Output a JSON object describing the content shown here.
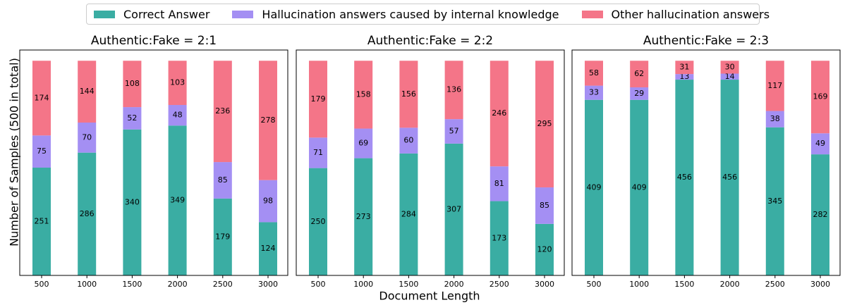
{
  "colors": {
    "correct": "#3aada3",
    "internal": "#a48ff3",
    "other": "#f47588"
  },
  "legend": {
    "correct": "Correct Answer",
    "internal": "Hallucination answers caused by internal knowledge",
    "other": "Other hallucination answers"
  },
  "ylabel": "Number of Samples (500 in total)",
  "xlabel": "Document Length",
  "chart_data": [
    {
      "type": "bar",
      "stacked": true,
      "title": "Authentic:Fake = 2:1",
      "categories": [
        "500",
        "1000",
        "1500",
        "2000",
        "2500",
        "3000"
      ],
      "series": [
        {
          "name": "Correct Answer",
          "values": [
            251,
            286,
            340,
            349,
            179,
            124
          ]
        },
        {
          "name": "Hallucination answers caused by internal knowledge",
          "values": [
            75,
            70,
            52,
            48,
            85,
            98
          ]
        },
        {
          "name": "Other hallucination answers",
          "values": [
            174,
            144,
            108,
            103,
            236,
            278
          ]
        }
      ],
      "ylim": [
        0,
        525
      ]
    },
    {
      "type": "bar",
      "stacked": true,
      "title": "Authentic:Fake = 2:2",
      "categories": [
        "500",
        "1000",
        "1500",
        "2000",
        "2500",
        "3000"
      ],
      "series": [
        {
          "name": "Correct Answer",
          "values": [
            250,
            273,
            284,
            307,
            173,
            120
          ]
        },
        {
          "name": "Hallucination answers caused by internal knowledge",
          "values": [
            71,
            69,
            60,
            57,
            81,
            85
          ]
        },
        {
          "name": "Other hallucination answers",
          "values": [
            179,
            158,
            156,
            136,
            246,
            295
          ]
        }
      ],
      "ylim": [
        0,
        525
      ]
    },
    {
      "type": "bar",
      "stacked": true,
      "title": "Authentic:Fake = 2:3",
      "categories": [
        "500",
        "1000",
        "1500",
        "2000",
        "2500",
        "3000"
      ],
      "series": [
        {
          "name": "Correct Answer",
          "values": [
            409,
            409,
            456,
            456,
            345,
            282
          ]
        },
        {
          "name": "Hallucination answers caused by internal knowledge",
          "values": [
            33,
            29,
            13,
            14,
            38,
            49
          ]
        },
        {
          "name": "Other hallucination answers",
          "values": [
            58,
            62,
            31,
            30,
            117,
            169
          ]
        }
      ],
      "ylim": [
        0,
        525
      ]
    }
  ]
}
